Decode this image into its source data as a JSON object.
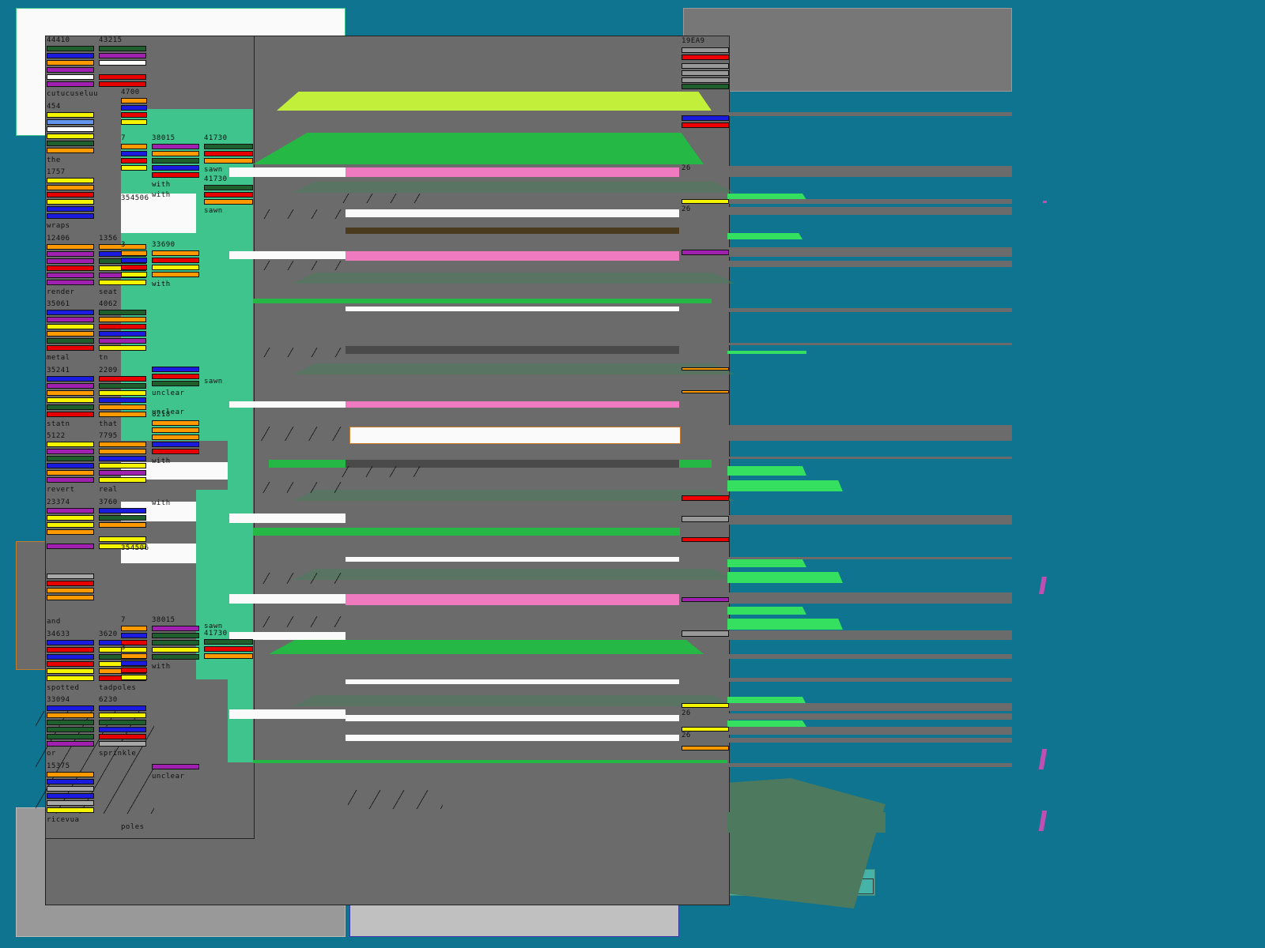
{
  "colors": {
    "background": "#0e7490",
    "panel_gray": "#6b6b6b",
    "panel_light": "#fafafa",
    "teal_green": "#3ec48c",
    "bright_green": "#25b845",
    "lime": "#c2f03a",
    "pink": "#f07ac0",
    "dark_green": "#1f5f2e",
    "silver": "#c0c0c0"
  },
  "columns": [
    {
      "id": "c1",
      "items": [
        {
          "number": "44410",
          "label": "cutucuseluu",
          "stripes": [
            "darkgreen",
            "blue",
            "orange",
            "purple",
            "white",
            "purple"
          ]
        },
        {
          "number": "454",
          "label": "the",
          "stripes": [
            "yellow",
            "cornflower",
            "white",
            "yellow",
            "darkgreen",
            "orange"
          ]
        },
        {
          "number": "1757",
          "label": "wraps",
          "stripes": [
            "yellow",
            "orange",
            "red",
            "yellow",
            "blue",
            "blue"
          ]
        },
        {
          "number": "12406",
          "label": "render",
          "stripes": [
            "orange",
            "purple",
            "purple",
            "red",
            "purple",
            "purple"
          ]
        },
        {
          "number": "35061",
          "label": "metal",
          "stripes": [
            "blue",
            "purple",
            "yellow",
            "orange",
            "darkgreen",
            "red"
          ]
        },
        {
          "number": "35241",
          "label": "statn",
          "stripes": [
            "blue",
            "purple",
            "orange",
            "yellow",
            "darkgreen",
            "red"
          ]
        },
        {
          "number": "5122",
          "label": "revert",
          "stripes": [
            "yellow",
            "purple",
            "darkgreen",
            "blue",
            "orange",
            "purple"
          ]
        },
        {
          "number": "23374",
          "label": "",
          "stripes": [
            "purple",
            "yellow",
            "yellow",
            "orange",
            "",
            "purple"
          ]
        },
        {
          "number": "",
          "label": "and",
          "stripes": [
            "gray",
            "red",
            "orange",
            "orange"
          ]
        },
        {
          "number": "34633",
          "label": "spotted",
          "stripes": [
            "blue",
            "red",
            "blue",
            "red",
            "yellow",
            "yellow"
          ]
        },
        {
          "number": "33094",
          "label": "or",
          "stripes": [
            "blue",
            "orange",
            "darkgreen",
            "darkgreen",
            "darkgreen",
            "purple"
          ]
        },
        {
          "number": "15375",
          "label": "ricevua",
          "stripes": [
            "orange",
            "blue",
            "gray",
            "blue",
            "gray",
            "yellow"
          ]
        }
      ]
    },
    {
      "id": "c2",
      "items": [
        {
          "number": "43215",
          "label": "",
          "stripes": [
            "darkgreen",
            "purple",
            "white",
            "",
            "red",
            "red"
          ]
        },
        {
          "number": "1356",
          "label": "seat",
          "stripes": [
            "orange",
            "blue",
            "darkgreen",
            "yellow",
            "purple",
            "yellow"
          ]
        },
        {
          "number": "4062",
          "label": "tn",
          "stripes": [
            "darkgreen",
            "orange",
            "red",
            "blue",
            "purple",
            "yellow"
          ]
        },
        {
          "number": "2209",
          "label": "that",
          "stripes": [
            "red",
            "darkgreen",
            "yellow",
            "blue",
            "orange",
            "orange"
          ]
        },
        {
          "number": "7795",
          "label": "real",
          "stripes": [
            "orange",
            "orange",
            "blue",
            "yellow",
            "purple",
            "yellow"
          ]
        },
        {
          "number": "3760",
          "label": "",
          "stripes": [
            "blue",
            "darkgreen",
            "orange",
            "",
            "yellow",
            "yellow"
          ]
        },
        {
          "number": "3620",
          "label": "tadpoles",
          "stripes": [
            "blue",
            "yellow",
            "darkgreen",
            "yellow",
            "orange",
            "red"
          ]
        },
        {
          "number": "6230",
          "label": "sprinkle",
          "stripes": [
            "blue",
            "yellow",
            "darkgreen",
            "blue",
            "red",
            "gray"
          ]
        }
      ]
    },
    {
      "id": "c3",
      "numbers": [
        "4700",
        "7",
        "3",
        "7",
        "3"
      ]
    },
    {
      "id": "c4",
      "items": [
        {
          "number": "38015",
          "label": "with"
        },
        {
          "number": "33690",
          "label": "with"
        },
        {
          "number": "8218",
          "label": "with"
        },
        {
          "number": "38015",
          "label": "with"
        },
        {
          "number": "",
          "label": "unclear"
        },
        {
          "number": "",
          "label": "unclear"
        }
      ]
    },
    {
      "id": "c5",
      "items": [
        {
          "number": "41730",
          "label": "sawn"
        },
        {
          "number": "41730",
          "label": "sawn"
        },
        {
          "number": "41730",
          "label": ""
        }
      ]
    }
  ],
  "misc_numbers": [
    "354506",
    "354506",
    "19EA9",
    "26",
    "26",
    "26",
    "26"
  ],
  "sliver_labels": [
    "with",
    "with",
    "unclear",
    "sawn",
    "sawn",
    "poles"
  ]
}
